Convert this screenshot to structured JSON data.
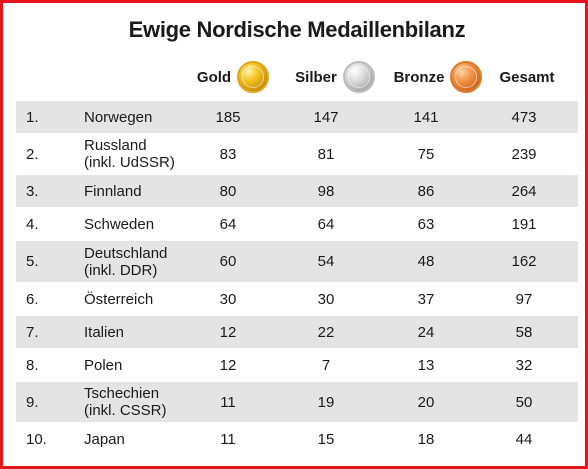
{
  "title": "Ewige Nordische Medaillenbilanz",
  "columns": {
    "gold": "Gold",
    "silber": "Silber",
    "bronze": "Bronze",
    "gesamt": "Gesamt"
  },
  "medal_icons": {
    "gold": "gold-medal-icon",
    "silber": "silver-medal-icon",
    "bronze": "bronze-medal-icon"
  },
  "colors": {
    "frame": "#e8141b",
    "row_shade": "#e4e4e4"
  },
  "rows": [
    {
      "rank": "1.",
      "country": "Norwegen",
      "country_sub": "",
      "gold": "185",
      "silber": "147",
      "bronze": "141",
      "gesamt": "473"
    },
    {
      "rank": "2.",
      "country": "Russland",
      "country_sub": "(inkl. UdSSR)",
      "gold": "83",
      "silber": "81",
      "bronze": "75",
      "gesamt": "239"
    },
    {
      "rank": "3.",
      "country": "Finnland",
      "country_sub": "",
      "gold": "80",
      "silber": "98",
      "bronze": "86",
      "gesamt": "264"
    },
    {
      "rank": "4.",
      "country": "Schweden",
      "country_sub": "",
      "gold": "64",
      "silber": "64",
      "bronze": "63",
      "gesamt": "191"
    },
    {
      "rank": "5.",
      "country": "Deutschland",
      "country_sub": "(inkl. DDR)",
      "gold": "60",
      "silber": "54",
      "bronze": "48",
      "gesamt": "162"
    },
    {
      "rank": "6.",
      "country": "Österreich",
      "country_sub": "",
      "gold": "30",
      "silber": "30",
      "bronze": "37",
      "gesamt": "97"
    },
    {
      "rank": "7.",
      "country": "Italien",
      "country_sub": "",
      "gold": "12",
      "silber": "22",
      "bronze": "24",
      "gesamt": "58"
    },
    {
      "rank": "8.",
      "country": "Polen",
      "country_sub": "",
      "gold": "12",
      "silber": "7",
      "bronze": "13",
      "gesamt": "32"
    },
    {
      "rank": "9.",
      "country": "Tschechien",
      "country_sub": "(inkl. CSSR)",
      "gold": "11",
      "silber": "19",
      "bronze": "20",
      "gesamt": "50"
    },
    {
      "rank": "10.",
      "country": "Japan",
      "country_sub": "",
      "gold": "11",
      "silber": "15",
      "bronze": "18",
      "gesamt": "44"
    }
  ]
}
